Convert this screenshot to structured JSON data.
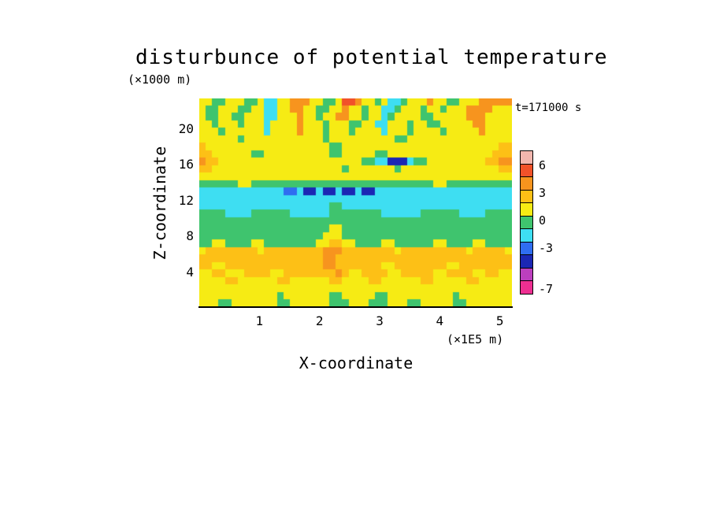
{
  "title": "disturbunce of potential temperature",
  "annotations": {
    "time_label": "t=171000 s",
    "y_units": "(×1000 m)",
    "x_units": "(×1E5 m)"
  },
  "axes": {
    "x_label": "X-coordinate",
    "y_label": "Z-coordinate",
    "x_ticks": [
      1,
      2,
      3,
      4,
      5
    ],
    "y_ticks": [
      4,
      8,
      12,
      16,
      20
    ]
  },
  "colorbar": {
    "segment_colors_top_to_bottom": [
      "#f2b6ae",
      "#f1522a",
      "#f7941e",
      "#fdc016",
      "#f6eb14",
      "#3fc46e",
      "#3edef2",
      "#2f6df0",
      "#1b27b4",
      "#bc3fbe",
      "#ee2f92"
    ],
    "labels": [
      {
        "text": "6",
        "boundary": 1
      },
      {
        "text": "3",
        "boundary": 3
      },
      {
        "text": "0",
        "boundary": 5
      },
      {
        "text": "-3",
        "boundary": 7
      },
      {
        "text": "-7",
        "boundary": 10
      }
    ]
  },
  "chart_data": {
    "type": "heatmap",
    "title": "disturbunce of potential temperature",
    "xlabel": "X-coordinate (×1E5 m)",
    "ylabel": "Z-coordinate (×1000 m)",
    "time": "t=171000 s",
    "x_range": [
      0,
      5.2
    ],
    "z_range": [
      0,
      23.3
    ],
    "contour_levels_top_to_bottom": [
      6,
      4.5,
      3,
      1.5,
      0,
      -1.5,
      -3,
      -4.5,
      -6,
      -7
    ],
    "palette": {
      "P": {
        "color": "#f2b6ae",
        "range": "> 6"
      },
      "R": {
        "color": "#f1522a",
        "range": "4.5 to 6"
      },
      "O": {
        "color": "#f7941e",
        "range": "3 to 4.5"
      },
      "A": {
        "color": "#fdc016",
        "range": "1.5 to 3"
      },
      "Y": {
        "color": "#f6eb14",
        "range": "0 to 1.5"
      },
      "G": {
        "color": "#3fc46e",
        "range": "-1.5 to 0"
      },
      "C": {
        "color": "#3edef2",
        "range": "-3 to -1.5"
      },
      "B": {
        "color": "#2f6df0",
        "range": "-4.5 to -3"
      },
      "D": {
        "color": "#1b27b4",
        "range": "-6 to -4.5"
      },
      "V": {
        "color": "#bc3fbe",
        "range": "-7 to -6"
      },
      "M": {
        "color": "#ee2f92",
        "range": "< -7"
      }
    },
    "grid_rows_top_to_bottom": [
      "YYGGYYYGGYCCYYOOOYYGGYRROYYGYCCGYYYOYYGGYYYOOOOO",
      "YGGYYYGGYYCCYYOOYYGGYYOYYGYYCCGYYYGYYGYYYOOOOYYY",
      "YGGYYGGYYYCCYYYOYYGYYOOYYGYYCGYYYYGGYYYYYOOOYYYY",
      "YYGYYYGYYYCYYYYOYYYGYYYGGYYCCYYYGYYGGYYYYYOOYYYY",
      "YYYGYYYYYYCYYYYOYYYGYYYGYYYYCYYYGYYYYGYYYYYOYYYY",
      "YYYYYYGYYYYYYYYYYYYGYYYYYYYYYYGGYYYYYYYYYYYYYYYY",
      "AYYYYYYYYYYYYYYYYYYYGGYYYYYYYYYYYYYYYYYYYYYYYYAA",
      "AAYYYYYYGGYYYYYYYYYYGGYYYYYGGYYYYYYYYYYYYYYYYAAA",
      "OAAYYYYYYYYYYYYYYYYYYYYYYGGCCDDDCGGYYYYYYYYYAAOO",
      "AAYYYYYYYYYYYYYYYYYYYYGYYYYYYYGYYYYYYYYYYYYYYYAA",
      "YYYYYYYYYYYYYYYYYYYYYYYYYYYYYYYYYYYYYYYYYYYYYYYY",
      "GGGGGGYYGGGGGGGGGGGGGGGGGGGGGGGGGGGGYYGGGGGGGGGG",
      "CCCCCCCCCCCCCBBCDDCDDCDDCDDCCCCCCCCCCCCCCCCCCCCC",
      "CCCCCCCCCCCCCCCCCCCCCCCCCCCCCCCCCCCCCCCCCCCCCCCC",
      "CCCCCCCCCCCCCCCCCCCCGGCCCCCCCCCCCCCCCCCCCCCCCCCC",
      "GGGGCCCCGGGGGGCCCCCCGGGGGGGGCCCCCCGGGGGGCCCCGGGG",
      "GGGGGGGGGGGGGGGGGGGGGGGGGGGGGGGGGGGGGGGGGGGGGGGG",
      "GGGGGGGGGGGGGGGGGGGGYYGGGGGGGGGGGGGGGGGGGGGGGGGG",
      "GGGGGGGGGGGGGGGGGGGYYYGGGGGGGGGGGGGGGGGGGGGGGGGG",
      "GGYYGGGGYYGGGGGGGGYYAAYYGGGGYYGGGGGGYYGGGGYYGGGG",
      "YAAAAAAAAYAAAAAAAAAOOOAAAAAAAAYAAAAAAAAAAYAAAAAY",
      "AAAAAAAAAAAAAAAAAAAOOAAAAAAAAAAAAAAAAAAAAAAAAAAA",
      "AAYYAAAAAAAAAAAAAAAOOAAAAAAAYYAAAAAAAAYYAAAAAAAA",
      "YYAAYYYAAAAYYAAAAAAAAOAYYAAAAYYAAAAAYYAAAAYYAAYY",
      "YYYYAAYYYYYYAAYYYYYYAAYYYYAAYYYYYYAAYYYYYAAYYYYY",
      "YYYYYYYYYYYYYYYYYYYYYYYYYYYYYYYYYYYYYYYYYYYYYYYY",
      "YYYYYYYYYYYYGYYYYYYYGGYYYYYGGYYYYYYYYYYGYYYYYYYY",
      "YYYGGYYYYYYYGGYYYYYYGGGYYYGGGYYYGGYYYYYGGYYYYYYY"
    ]
  }
}
